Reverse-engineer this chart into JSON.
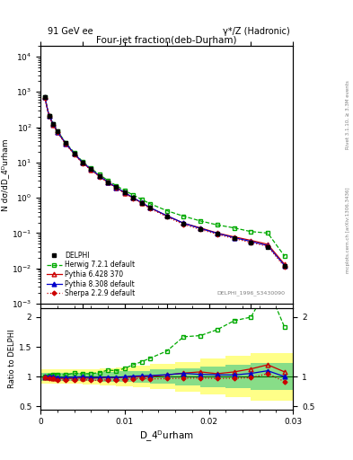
{
  "title": "Four-jet fraction(deb-Durham)",
  "header_left": "91 GeV ee",
  "header_right": "γ*/Z (Hadronic)",
  "ylabel_main": "N dσ/dD_4ᴰurham",
  "ylabel_ratio": "Ratio to DELPHI",
  "right_label_top": "Rivet 3.1.10, ≥ 3.3M events",
  "right_label_mid": "mcplots.cern.ch [arXiv:1306.3436]",
  "watermark": "DELPHI_1996_S3430090",
  "x_delphi": [
    0.0005,
    0.001,
    0.0015,
    0.002,
    0.003,
    0.004,
    0.005,
    0.006,
    0.007,
    0.008,
    0.009,
    0.01,
    0.011,
    0.012,
    0.013,
    0.015,
    0.017,
    0.019,
    0.021,
    0.023,
    0.025,
    0.027,
    0.029
  ],
  "y_delphi": [
    700,
    210,
    120,
    75,
    35,
    18,
    10,
    6.5,
    4.2,
    2.8,
    2.0,
    1.4,
    1.0,
    0.72,
    0.52,
    0.3,
    0.18,
    0.13,
    0.095,
    0.072,
    0.055,
    0.04,
    0.012
  ],
  "x_herwig": [
    0.0005,
    0.001,
    0.0015,
    0.002,
    0.003,
    0.004,
    0.005,
    0.006,
    0.007,
    0.008,
    0.009,
    0.01,
    0.011,
    0.012,
    0.013,
    0.015,
    0.017,
    0.019,
    0.021,
    0.023,
    0.025,
    0.027,
    0.029
  ],
  "y_herwig": [
    710,
    215,
    125,
    78,
    36,
    19,
    10.5,
    6.8,
    4.5,
    3.1,
    2.2,
    1.6,
    1.2,
    0.9,
    0.68,
    0.43,
    0.3,
    0.22,
    0.17,
    0.14,
    0.11,
    0.1,
    0.022
  ],
  "x_pythia6": [
    0.0005,
    0.001,
    0.0015,
    0.002,
    0.003,
    0.004,
    0.005,
    0.006,
    0.007,
    0.008,
    0.009,
    0.01,
    0.011,
    0.012,
    0.013,
    0.015,
    0.017,
    0.019,
    0.021,
    0.023,
    0.025,
    0.027,
    0.029
  ],
  "y_pythia6": [
    695,
    208,
    118,
    73,
    34,
    17.5,
    9.8,
    6.3,
    4.1,
    2.75,
    1.95,
    1.38,
    0.99,
    0.72,
    0.52,
    0.31,
    0.19,
    0.14,
    0.1,
    0.078,
    0.062,
    0.048,
    0.013
  ],
  "x_pythia8": [
    0.0005,
    0.001,
    0.0015,
    0.002,
    0.003,
    0.004,
    0.005,
    0.006,
    0.007,
    0.008,
    0.009,
    0.01,
    0.011,
    0.012,
    0.013,
    0.015,
    0.017,
    0.019,
    0.021,
    0.023,
    0.025,
    0.027,
    0.029
  ],
  "y_pythia8": [
    705,
    212,
    121,
    74,
    34.5,
    17.8,
    10.0,
    6.4,
    4.15,
    2.78,
    1.97,
    1.4,
    1.01,
    0.73,
    0.53,
    0.31,
    0.19,
    0.135,
    0.098,
    0.074,
    0.058,
    0.044,
    0.012
  ],
  "x_sherpa": [
    0.0005,
    0.001,
    0.0015,
    0.002,
    0.003,
    0.004,
    0.005,
    0.006,
    0.007,
    0.008,
    0.009,
    0.01,
    0.011,
    0.012,
    0.013,
    0.015,
    0.017,
    0.019,
    0.021,
    0.023,
    0.025,
    0.027,
    0.029
  ],
  "y_sherpa": [
    690,
    205,
    116,
    71,
    33,
    17,
    9.5,
    6.1,
    3.95,
    2.65,
    1.88,
    1.33,
    0.96,
    0.7,
    0.5,
    0.29,
    0.175,
    0.127,
    0.092,
    0.07,
    0.054,
    0.042,
    0.011
  ],
  "ratio_herwig": [
    1.01,
    1.02,
    1.04,
    1.04,
    1.03,
    1.06,
    1.05,
    1.05,
    1.07,
    1.11,
    1.1,
    1.14,
    1.2,
    1.25,
    1.31,
    1.43,
    1.67,
    1.69,
    1.79,
    1.94,
    2.0,
    2.5,
    1.83
  ],
  "ratio_pythia6": [
    0.99,
    0.99,
    0.98,
    0.97,
    0.97,
    0.97,
    0.98,
    0.97,
    0.98,
    0.98,
    0.98,
    0.99,
    0.99,
    1.0,
    1.0,
    1.03,
    1.06,
    1.08,
    1.05,
    1.08,
    1.13,
    1.2,
    1.08
  ],
  "ratio_pythia8": [
    1.007,
    1.01,
    1.008,
    0.987,
    0.986,
    0.989,
    1.0,
    0.985,
    0.988,
    0.993,
    0.985,
    1.0,
    1.01,
    1.014,
    1.019,
    1.033,
    1.056,
    1.038,
    1.032,
    1.028,
    1.055,
    1.1,
    1.0
  ],
  "ratio_sherpa": [
    0.986,
    0.976,
    0.967,
    0.947,
    0.943,
    0.944,
    0.952,
    0.938,
    0.94,
    0.946,
    0.94,
    0.95,
    0.96,
    0.972,
    0.962,
    0.967,
    0.972,
    0.977,
    0.968,
    0.972,
    0.982,
    1.05,
    0.917
  ],
  "band_x_edges": [
    0.0,
    0.001,
    0.002,
    0.003,
    0.005,
    0.007,
    0.009,
    0.011,
    0.013,
    0.016,
    0.019,
    0.022,
    0.025,
    0.03
  ],
  "band_green_lo": [
    0.93,
    0.93,
    0.93,
    0.93,
    0.93,
    0.92,
    0.91,
    0.9,
    0.88,
    0.86,
    0.83,
    0.8,
    0.77,
    0.72
  ],
  "band_green_hi": [
    1.07,
    1.07,
    1.07,
    1.07,
    1.07,
    1.08,
    1.09,
    1.1,
    1.12,
    1.14,
    1.17,
    1.2,
    1.23,
    1.28
  ],
  "band_yellow_lo": [
    0.88,
    0.88,
    0.88,
    0.88,
    0.87,
    0.86,
    0.84,
    0.82,
    0.79,
    0.75,
    0.7,
    0.65,
    0.6,
    0.55
  ],
  "band_yellow_hi": [
    1.12,
    1.12,
    1.12,
    1.12,
    1.13,
    1.14,
    1.16,
    1.18,
    1.21,
    1.25,
    1.3,
    1.35,
    1.4,
    1.45
  ],
  "color_delphi": "#000000",
  "color_herwig": "#00aa00",
  "color_pythia6": "#cc0000",
  "color_pythia8": "#0000cc",
  "color_sherpa": "#cc0000",
  "ylim_main": [
    0.001,
    20000.0
  ],
  "ylim_ratio": [
    0.45,
    2.15
  ],
  "xlim": [
    0.0,
    0.03
  ],
  "legend_labels": [
    "DELPHI",
    "Herwig 7.2.1 default",
    "Pythia 6.428 370",
    "Pythia 8.308 default",
    "Sherpa 2.2.9 default"
  ]
}
